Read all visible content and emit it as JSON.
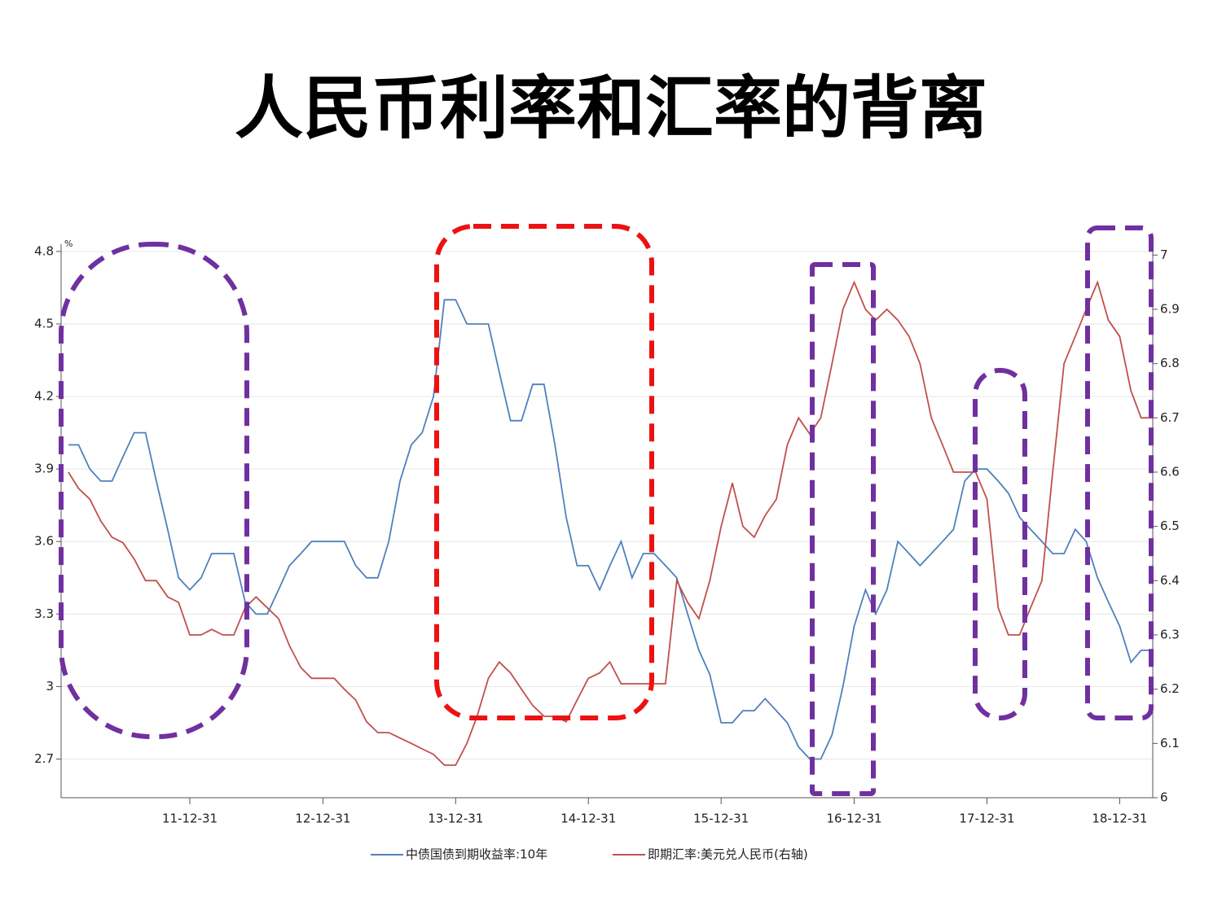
{
  "chart_data": {
    "type": "line",
    "title": "人民币利率和汇率的背离",
    "y_unit": "%",
    "x": [
      "11-01-31",
      "11-02-28",
      "11-03-31",
      "11-04-30",
      "11-05-31",
      "11-06-30",
      "11-07-31",
      "11-08-31",
      "11-09-30",
      "11-10-31",
      "11-11-30",
      "11-12-31",
      "12-01-31",
      "12-02-29",
      "12-03-31",
      "12-04-30",
      "12-05-31",
      "12-06-30",
      "12-07-31",
      "12-08-31",
      "12-09-30",
      "12-10-31",
      "12-11-30",
      "12-12-31",
      "13-01-31",
      "13-02-28",
      "13-03-31",
      "13-04-30",
      "13-05-31",
      "13-06-30",
      "13-07-31",
      "13-08-31",
      "13-09-30",
      "13-10-31",
      "13-11-30",
      "13-12-31",
      "14-01-31",
      "14-02-28",
      "14-03-31",
      "14-04-30",
      "14-05-31",
      "14-06-30",
      "14-07-31",
      "14-08-31",
      "14-09-30",
      "14-10-31",
      "14-11-30",
      "14-12-31",
      "15-01-31",
      "15-02-28",
      "15-03-31",
      "15-04-30",
      "15-05-31",
      "15-06-30",
      "15-07-31",
      "15-08-31",
      "15-09-30",
      "15-10-31",
      "15-11-30",
      "15-12-31",
      "16-01-31",
      "16-02-29",
      "16-03-31",
      "16-04-30",
      "16-05-31",
      "16-06-30",
      "16-07-31",
      "16-08-31",
      "16-09-30",
      "16-10-31",
      "16-11-30",
      "16-12-31",
      "17-01-31",
      "17-02-28",
      "17-03-31",
      "17-04-30",
      "17-05-31",
      "17-06-30",
      "17-07-31",
      "17-08-31",
      "17-09-30",
      "17-10-31",
      "17-11-30",
      "17-12-31",
      "18-01-31",
      "18-02-28",
      "18-03-31",
      "18-04-30",
      "18-05-31",
      "18-06-30",
      "18-07-31",
      "18-08-31",
      "18-09-30",
      "18-10-31",
      "18-11-30",
      "18-12-31",
      "19-01-31",
      "19-02-28",
      "19-03-31"
    ],
    "series": [
      {
        "name": "中债国债到期收益率:10年",
        "color": "#4f81bd",
        "values": [
          4.0,
          4.0,
          3.9,
          3.85,
          3.85,
          3.95,
          4.05,
          4.05,
          3.85,
          3.65,
          3.45,
          3.4,
          3.45,
          3.55,
          3.55,
          3.55,
          3.35,
          3.3,
          3.3,
          3.4,
          3.5,
          3.55,
          3.6,
          3.6,
          3.6,
          3.6,
          3.5,
          3.45,
          3.45,
          3.6,
          3.85,
          4.0,
          4.05,
          4.2,
          4.6,
          4.6,
          4.5,
          4.5,
          4.5,
          4.3,
          4.1,
          4.1,
          4.25,
          4.25,
          4.0,
          3.7,
          3.5,
          3.5,
          3.4,
          3.5,
          3.6,
          3.45,
          3.55,
          3.55,
          3.5,
          3.45,
          3.3,
          3.15,
          3.05,
          2.85,
          2.85,
          2.9,
          2.9,
          2.95,
          2.9,
          2.85,
          2.75,
          2.7,
          2.7,
          2.8,
          3.0,
          3.25,
          3.4,
          3.3,
          3.4,
          3.6,
          3.55,
          3.5,
          3.55,
          3.6,
          3.65,
          3.85,
          3.9,
          3.9,
          3.85,
          3.8,
          3.7,
          3.65,
          3.6,
          3.55,
          3.55,
          3.65,
          3.6,
          3.45,
          3.35,
          3.25,
          3.1,
          3.15,
          3.15
        ]
      },
      {
        "name": "即期汇率:美元兑人民币(右轴)",
        "color": "#c0504d",
        "axis": "y2",
        "values": [
          6.6,
          6.57,
          6.55,
          6.51,
          6.48,
          6.47,
          6.44,
          6.4,
          6.4,
          6.37,
          6.36,
          6.3,
          6.3,
          6.31,
          6.3,
          6.3,
          6.35,
          6.37,
          6.35,
          6.33,
          6.28,
          6.24,
          6.22,
          6.22,
          6.22,
          6.2,
          6.18,
          6.14,
          6.12,
          6.12,
          6.11,
          6.1,
          6.09,
          6.08,
          6.06,
          6.06,
          6.1,
          6.15,
          6.22,
          6.25,
          6.23,
          6.2,
          6.17,
          6.15,
          6.15,
          6.14,
          6.18,
          6.22,
          6.23,
          6.25,
          6.21,
          6.21,
          6.21,
          6.21,
          6.21,
          6.4,
          6.36,
          6.33,
          6.4,
          6.5,
          6.58,
          6.5,
          6.48,
          6.52,
          6.55,
          6.65,
          6.7,
          6.67,
          6.7,
          6.8,
          6.9,
          6.95,
          6.9,
          6.88,
          6.9,
          6.88,
          6.85,
          6.8,
          6.7,
          6.65,
          6.6,
          6.6,
          6.6,
          6.55,
          6.35,
          6.3,
          6.3,
          6.35,
          6.4,
          6.6,
          6.8,
          6.85,
          6.9,
          6.95,
          6.88,
          6.85,
          6.75,
          6.7,
          6.7
        ]
      }
    ],
    "xlim": [
      "11-01-11",
      "19-04-01"
    ],
    "xticks": [
      "11-12-31",
      "12-12-31",
      "13-12-31",
      "14-12-31",
      "15-12-31",
      "16-12-31",
      "17-12-31",
      "18-12-31"
    ],
    "ylim": [
      2.54,
      4.83
    ],
    "yticks": [
      2.7,
      3.0,
      3.3,
      3.6,
      3.9,
      4.2,
      4.5,
      4.8
    ],
    "y2lim": [
      6.0,
      7.02
    ],
    "y2ticks": [
      6.0,
      6.1,
      6.2,
      6.3,
      6.4,
      6.5,
      6.6,
      6.7,
      6.8,
      6.9,
      7.0
    ],
    "grid": true,
    "legend": "bottom"
  }
}
